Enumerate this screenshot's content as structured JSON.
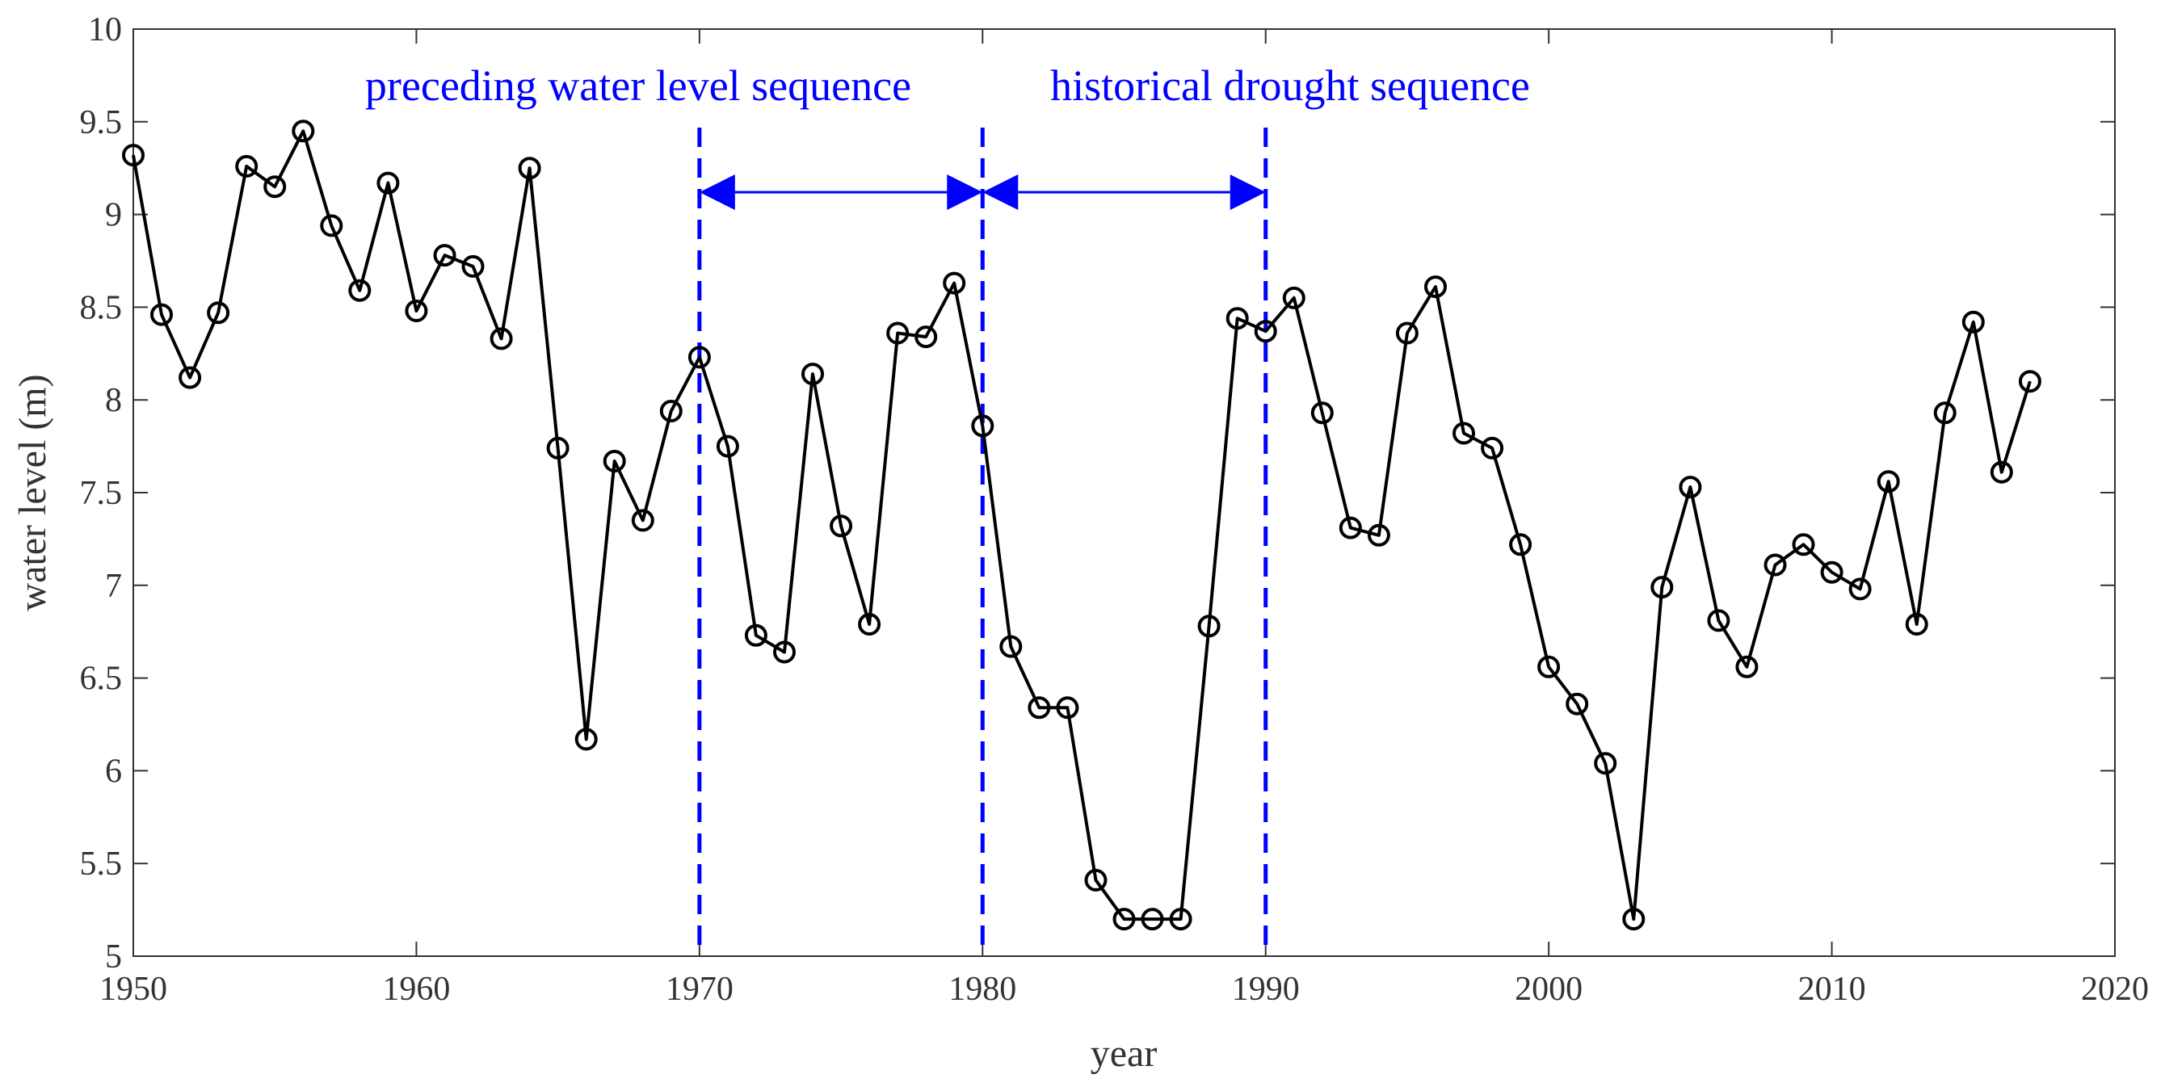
{
  "chart_data": {
    "type": "line",
    "title": "",
    "xlabel": "year",
    "ylabel": "water level (m)",
    "xlim": [
      1950,
      2020
    ],
    "ylim": [
      5,
      10
    ],
    "x_ticks": [
      1950,
      1960,
      1970,
      1980,
      1990,
      2000,
      2010,
      2020
    ],
    "y_ticks": [
      5,
      5.5,
      6,
      6.5,
      7,
      7.5,
      8,
      8.5,
      9,
      9.5,
      10
    ],
    "x_tick_labels": [
      "1950",
      "1960",
      "1970",
      "1980",
      "1990",
      "2000",
      "2010",
      "2020"
    ],
    "y_tick_labels": [
      "5",
      "5.5",
      "6",
      "6.5",
      "7",
      "7.5",
      "8",
      "8.5",
      "9",
      "9.5",
      "10"
    ],
    "grid": false,
    "series": [
      {
        "name": "water level",
        "color": "#000000",
        "marker": "circle",
        "x": [
          1950,
          1951,
          1952,
          1953,
          1954,
          1955,
          1956,
          1957,
          1958,
          1959,
          1960,
          1961,
          1962,
          1963,
          1964,
          1965,
          1966,
          1967,
          1968,
          1969,
          1970,
          1971,
          1972,
          1973,
          1974,
          1975,
          1976,
          1977,
          1978,
          1979,
          1980,
          1981,
          1982,
          1983,
          1984,
          1985,
          1986,
          1987,
          1988,
          1989,
          1990,
          1991,
          1992,
          1993,
          1994,
          1995,
          1996,
          1997,
          1998,
          1999,
          2000,
          2001,
          2002,
          2003,
          2004,
          2005,
          2006,
          2007,
          2008,
          2009,
          2010,
          2011,
          2012,
          2013,
          2014,
          2015,
          2016,
          2017
        ],
        "values": [
          9.32,
          8.46,
          8.12,
          8.47,
          9.26,
          9.15,
          9.45,
          8.94,
          8.59,
          9.17,
          8.48,
          8.78,
          8.72,
          8.33,
          9.25,
          7.74,
          6.17,
          7.67,
          7.35,
          7.94,
          8.23,
          7.75,
          6.73,
          6.64,
          8.14,
          7.32,
          6.79,
          8.36,
          8.34,
          8.63,
          7.86,
          6.67,
          6.34,
          6.34,
          5.41,
          5.2,
          5.2,
          5.2,
          6.78,
          8.44,
          8.37,
          8.55,
          7.93,
          7.31,
          7.27,
          8.36,
          8.61,
          7.82,
          7.74,
          7.22,
          6.56,
          6.36,
          6.04,
          5.2,
          6.99,
          7.53,
          6.81,
          6.56,
          7.11,
          7.22,
          7.07,
          6.98,
          7.56,
          6.79,
          7.93,
          8.42,
          7.61,
          8.1
        ]
      }
    ],
    "vertical_lines": [
      {
        "x": 1970,
        "color": "#0000ff",
        "style": "dashed"
      },
      {
        "x": 1980,
        "color": "#0000ff",
        "style": "dashed"
      },
      {
        "x": 1990,
        "color": "#0000ff",
        "style": "dashed"
      }
    ],
    "annotations": [
      {
        "text": "preceding water level sequence",
        "x_from": 1970,
        "x_to": 1980,
        "arrow_y": 9.12,
        "color": "#0000ff"
      },
      {
        "text": "historical drought sequence",
        "x_from": 1980,
        "x_to": 1990,
        "arrow_y": 9.12,
        "color": "#0000ff"
      }
    ]
  }
}
